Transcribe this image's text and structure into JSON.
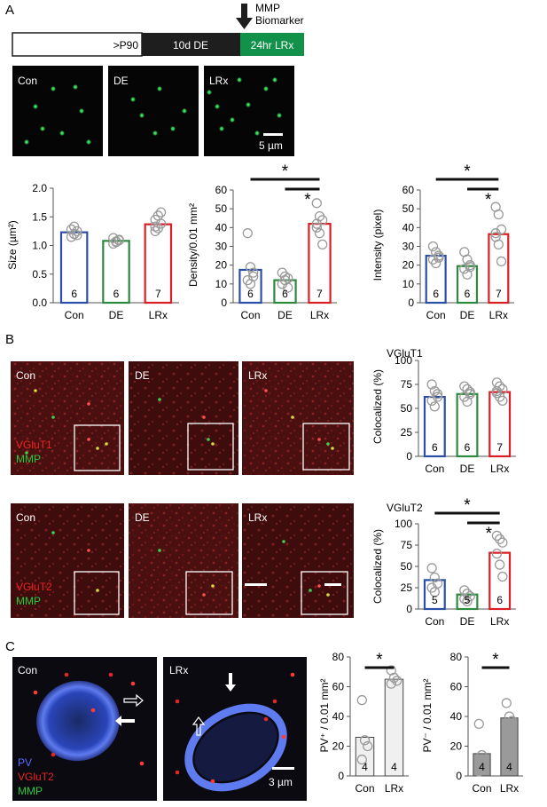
{
  "panel_labels": {
    "a": "A",
    "b": "B",
    "c": "C"
  },
  "timeline": {
    "segments": [
      "&gt;P90",
      "10d DE",
      "24hr LRx"
    ],
    "arrow_label_line1": "MMP",
    "arrow_label_line2": "Biomarker",
    "colors": {
      "white": "#ffffff",
      "black": "#1e1e1e",
      "green": "#12914a"
    }
  },
  "micrographs": {
    "a_labels": [
      "Con",
      "DE",
      "LRx"
    ],
    "a_scale": "5 µm",
    "b_labels_row1": [
      "Con",
      "DE",
      "LRx"
    ],
    "b_labels_row2": [
      "Con",
      "DE",
      "LRx"
    ],
    "b_stain_row1": [
      "VGluT1",
      "MMP"
    ],
    "b_stain_row2": [
      "VGluT2",
      "MMP"
    ],
    "c_labels": [
      "Con",
      "LRx"
    ],
    "c_stain": [
      "PV",
      "VGluT2",
      "MMP"
    ],
    "c_scale": "3 µm"
  },
  "colors": {
    "con": "#2b4fa6",
    "de": "#2c8a3f",
    "lrx": "#d91f26",
    "pv_plus": "#f0f0f0",
    "pv_minus": "#9a9a9a"
  },
  "chart_data": [
    {
      "id": "a-size",
      "type": "bar",
      "categories": [
        "Con",
        "DE",
        "LRx"
      ],
      "values": [
        1.23,
        1.08,
        1.37
      ],
      "n": [
        "6",
        "6",
        "7"
      ],
      "ylabel": "Size (µm²)",
      "ylim": [
        0,
        2.0
      ],
      "yticks": [
        "0.0",
        "0.5",
        "1.0",
        "1.5",
        "2.0"
      ],
      "points": [
        [
          1.15,
          1.2,
          1.25,
          1.28,
          1.33,
          1.18
        ],
        [
          1.03,
          1.07,
          1.1,
          1.13,
          1.06,
          1.09
        ],
        [
          1.25,
          1.3,
          1.38,
          1.45,
          1.52,
          1.58,
          1.33
        ]
      ],
      "significance": []
    },
    {
      "id": "a-density",
      "type": "bar",
      "categories": [
        "Con",
        "DE",
        "LRx"
      ],
      "values": [
        17.5,
        12,
        42
      ],
      "n": [
        "6",
        "6",
        "7"
      ],
      "ylabel": "Density/0.01 mm²",
      "ylim": [
        0,
        60
      ],
      "yticks": [
        "0",
        "10",
        "20",
        "30",
        "40",
        "50",
        "60"
      ],
      "points": [
        [
          37,
          19,
          14,
          12,
          10,
          16
        ],
        [
          16,
          12,
          8,
          10,
          14,
          13
        ],
        [
          53,
          46,
          44,
          40,
          37,
          31,
          42
        ]
      ],
      "significance": [
        "*",
        "*"
      ]
    },
    {
      "id": "a-intensity",
      "type": "bar",
      "categories": [
        "Con",
        "DE",
        "LRx"
      ],
      "values": [
        25,
        19.5,
        36.5
      ],
      "n": [
        "6",
        "6",
        "7"
      ],
      "ylabel": "Intensity (pixel)",
      "ylim": [
        0,
        60
      ],
      "yticks": [
        "0",
        "10",
        "20",
        "30",
        "40",
        "50",
        "60"
      ],
      "points": [
        [
          30,
          27,
          25,
          23,
          21,
          24
        ],
        [
          27,
          23,
          20,
          18,
          15,
          19
        ],
        [
          51,
          47,
          39,
          35,
          31,
          22,
          37
        ]
      ],
      "significance": [
        "*",
        "*"
      ]
    },
    {
      "id": "b-vglut1",
      "type": "bar",
      "title": "VGluT1",
      "categories": [
        "Con",
        "DE",
        "LRx"
      ],
      "values": [
        62,
        65,
        67
      ],
      "n": [
        "6",
        "6",
        "7"
      ],
      "ylabel": "Colocalized (%)",
      "ylim": [
        0,
        100
      ],
      "yticks": [
        "0",
        "25",
        "50",
        "75",
        "100"
      ],
      "points": [
        [
          75,
          68,
          62,
          58,
          52,
          65
        ],
        [
          73,
          70,
          65,
          62,
          57,
          67
        ],
        [
          77,
          73,
          70,
          66,
          62,
          58,
          68
        ]
      ],
      "significance": []
    },
    {
      "id": "b-vglut2",
      "type": "bar",
      "title": "VGluT2",
      "categories": [
        "Con",
        "DE",
        "LRx"
      ],
      "values": [
        34,
        17,
        66
      ],
      "n": [
        "5",
        "5",
        "6"
      ],
      "ylabel": "Colocalized (%)",
      "ylim": [
        0,
        100
      ],
      "yticks": [
        "0",
        "25",
        "50",
        "75",
        "100"
      ],
      "points": [
        [
          48,
          37,
          30,
          25,
          20
        ],
        [
          22,
          18,
          15,
          12,
          9
        ],
        [
          86,
          82,
          78,
          65,
          52,
          38
        ]
      ],
      "significance": [
        "*",
        "*"
      ]
    },
    {
      "id": "c-pvplus",
      "type": "bar",
      "categories": [
        "Con",
        "LRx"
      ],
      "values": [
        26,
        65
      ],
      "n": [
        "4",
        "4"
      ],
      "ylabel": "PV⁺ / 0.01 mm²",
      "ylim": [
        0,
        80
      ],
      "yticks": [
        "0",
        "20",
        "40",
        "60",
        "80"
      ],
      "points": [
        [
          51,
          24,
          20,
          11
        ],
        [
          71,
          66,
          64,
          62
        ]
      ],
      "significance": [
        "*"
      ]
    },
    {
      "id": "c-pvminus",
      "type": "bar",
      "categories": [
        "Con",
        "LRx"
      ],
      "values": [
        15,
        39
      ],
      "n": [
        "4",
        "4"
      ],
      "ylabel": "PV⁻ / 0.01 mm²",
      "ylim": [
        0,
        80
      ],
      "yticks": [
        "0",
        "20",
        "40",
        "60",
        "80"
      ],
      "points": [
        [
          35,
          14,
          8,
          3
        ],
        [
          49,
          40,
          37,
          34
        ]
      ],
      "significance": [
        "*"
      ]
    }
  ]
}
